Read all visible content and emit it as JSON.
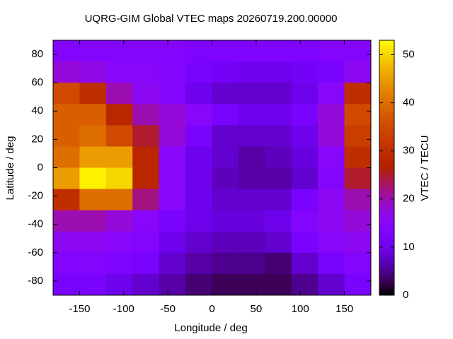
{
  "chart_data": {
    "type": "heatmap",
    "title": "UQRG-GIM Global VTEC maps 20260719.200.00000",
    "x_label": "Longitude / deg",
    "y_label": "Latitude / deg",
    "colorbar_label": "VTEC / TECU",
    "x_edges": [
      -180,
      -150,
      -120,
      -90,
      -60,
      -30,
      0,
      30,
      60,
      90,
      120,
      150,
      180
    ],
    "y_edges": [
      90,
      75,
      60,
      45,
      30,
      15,
      0,
      -15,
      -30,
      -45,
      -60,
      -75,
      -90
    ],
    "values": [
      [
        14,
        14,
        14,
        14,
        14,
        13,
        13,
        13,
        13,
        13,
        14,
        14
      ],
      [
        18,
        17,
        15,
        15,
        14,
        12,
        11,
        10,
        10,
        11,
        12,
        16
      ],
      [
        35,
        30,
        20,
        16,
        14,
        10,
        8,
        8,
        8,
        10,
        15,
        30
      ],
      [
        38,
        38,
        28,
        20,
        18,
        15,
        12,
        10,
        10,
        12,
        18,
        35
      ],
      [
        38,
        40,
        35,
        25,
        18,
        12,
        8,
        8,
        8,
        10,
        18,
        33
      ],
      [
        40,
        45,
        45,
        28,
        15,
        10,
        8,
        6,
        7,
        9,
        15,
        30
      ],
      [
        45,
        52,
        50,
        28,
        15,
        10,
        7,
        6,
        6,
        8,
        14,
        25
      ],
      [
        30,
        40,
        40,
        22,
        15,
        10,
        8,
        8,
        8,
        12,
        16,
        20
      ],
      [
        20,
        20,
        18,
        15,
        12,
        10,
        9,
        9,
        10,
        14,
        16,
        18
      ],
      [
        16,
        16,
        15,
        14,
        10,
        8,
        7,
        7,
        8,
        12,
        15,
        16
      ],
      [
        14,
        14,
        13,
        12,
        8,
        6,
        5,
        5,
        4,
        8,
        12,
        14
      ],
      [
        12,
        12,
        10,
        8,
        6,
        4,
        3,
        3,
        3,
        5,
        8,
        12
      ]
    ],
    "xlim": [
      -180,
      180
    ],
    "ylim": [
      -90,
      90
    ],
    "xticks": [
      -150,
      -100,
      -50,
      0,
      50,
      100,
      150
    ],
    "yticks": [
      -80,
      -60,
      -40,
      -20,
      0,
      20,
      40,
      60,
      80
    ],
    "zlim": [
      0,
      53
    ],
    "zticks": [
      0,
      10,
      20,
      30,
      40,
      50
    ]
  }
}
